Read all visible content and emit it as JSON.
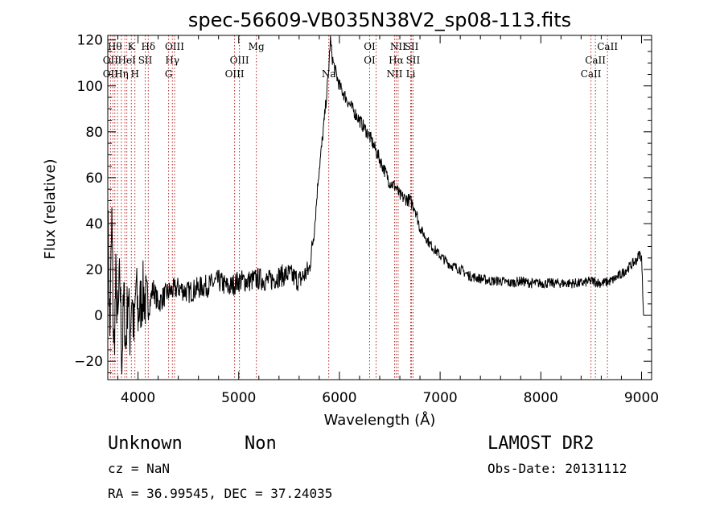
{
  "chart_data": {
    "type": "line",
    "title": "spec-56609-VB035N38V2_sp08-113.fits",
    "xlabel": "Wavelength (Å)",
    "ylabel": "Flux (relative)",
    "xlim": [
      3700,
      9100
    ],
    "ylim": [
      -28,
      122
    ],
    "xticks": [
      4000,
      5000,
      6000,
      7000,
      8000,
      9000
    ],
    "yticks": [
      -20,
      0,
      20,
      40,
      60,
      80,
      100,
      120
    ],
    "grid": false,
    "line_color": "#000000",
    "marker_color": "#b22222",
    "spectrum": {
      "name": "flux",
      "x": [
        3700,
        3720,
        3740,
        3760,
        3780,
        3800,
        3820,
        3840,
        3860,
        3880,
        3900,
        3920,
        3940,
        3960,
        3980,
        4000,
        4050,
        4100,
        4150,
        4200,
        4250,
        4300,
        4400,
        4500,
        4600,
        4700,
        4800,
        4900,
        5000,
        5100,
        5200,
        5300,
        5400,
        5500,
        5600,
        5700,
        5730,
        5760,
        5790,
        5820,
        5850,
        5870,
        5890,
        5910,
        5930,
        5950,
        6000,
        6100,
        6200,
        6300,
        6400,
        6500,
        6560,
        6600,
        6700,
        6750,
        6800,
        6900,
        7000,
        7100,
        7200,
        7300,
        7400,
        7500,
        7600,
        7700,
        7800,
        7900,
        8000,
        8100,
        8200,
        8300,
        8400,
        8500,
        8600,
        8700,
        8800,
        8900,
        8950,
        8980,
        9000,
        9020
      ],
      "y": [
        45,
        -10,
        42,
        -18,
        15,
        -5,
        18,
        -20,
        8,
        -15,
        12,
        -8,
        10,
        -10,
        14,
        0,
        10,
        2,
        12,
        5,
        8,
        10,
        12,
        10,
        12,
        13,
        15,
        12,
        15,
        15,
        16,
        15,
        17,
        18,
        15,
        20,
        30,
        42,
        60,
        72,
        85,
        95,
        105,
        120,
        112,
        108,
        100,
        92,
        85,
        78,
        68,
        58,
        56,
        52,
        50,
        47,
        38,
        31,
        26,
        22,
        20,
        17,
        16,
        15,
        15,
        14,
        15,
        14,
        14,
        14,
        14,
        14,
        14,
        15,
        14,
        15,
        18,
        22,
        24,
        27,
        25,
        0
      ]
    },
    "lines": [
      {
        "x": 3727,
        "labels": [
          "OII"
        ]
      },
      {
        "x": 3750,
        "labels": [
          "OII"
        ]
      },
      {
        "x": 3770,
        "labels": [
          "Hθ"
        ]
      },
      {
        "x": 3797,
        "labels": [
          "Hη"
        ]
      },
      {
        "x": 3835,
        "labels": [
          "Hη"
        ]
      },
      {
        "x": 3869,
        "labels": [
          "HeI"
        ]
      },
      {
        "x": 3889,
        "labels": [
          "HeI"
        ]
      },
      {
        "x": 3934,
        "labels": [
          "K"
        ]
      },
      {
        "x": 3969,
        "labels": [
          "H"
        ]
      },
      {
        "x": 4072,
        "labels": [
          "SII"
        ]
      },
      {
        "x": 4102,
        "labels": [
          "Hδ"
        ]
      },
      {
        "x": 4304,
        "labels": [
          "G"
        ]
      },
      {
        "x": 4341,
        "labels": [
          "Hγ"
        ]
      },
      {
        "x": 4363,
        "labels": [
          "OIII"
        ]
      },
      {
        "x": 4959,
        "labels": [
          "OIII"
        ]
      },
      {
        "x": 5007,
        "labels": [
          "OIII"
        ]
      },
      {
        "x": 5175,
        "labels": [
          "Mg"
        ]
      },
      {
        "x": 5894,
        "labels": [
          "Na"
        ]
      },
      {
        "x": 6300,
        "labels": [
          "OI"
        ]
      },
      {
        "x": 6364,
        "labels": [
          "OI"
        ]
      },
      {
        "x": 6548,
        "labels": [
          "NII"
        ]
      },
      {
        "x": 6563,
        "labels": [
          "Hα"
        ]
      },
      {
        "x": 6583,
        "labels": [
          "NII"
        ]
      },
      {
        "x": 6716,
        "labels": [
          "SII"
        ]
      },
      {
        "x": 6731,
        "labels": [
          "SII"
        ]
      },
      {
        "x": 6708,
        "labels": [
          "Li"
        ]
      },
      {
        "x": 8498,
        "labels": [
          "CaII"
        ]
      },
      {
        "x": 8542,
        "labels": [
          "CaII"
        ]
      },
      {
        "x": 8662,
        "labels": [
          "CaII"
        ]
      }
    ],
    "line_label_rows": [
      {
        "x": 3770,
        "text": "Hθ",
        "row": 0
      },
      {
        "x": 3934,
        "text": "K",
        "row": 0
      },
      {
        "x": 4102,
        "text": "Hδ",
        "row": 0
      },
      {
        "x": 4363,
        "text": "OIII",
        "row": 0
      },
      {
        "x": 5175,
        "text": "Mg",
        "row": 0
      },
      {
        "x": 6300,
        "text": "OI",
        "row": 0
      },
      {
        "x": 6583,
        "text": "NII",
        "row": 0
      },
      {
        "x": 6716,
        "text": "SII",
        "row": 0
      },
      {
        "x": 8662,
        "text": "CaII",
        "row": 0
      },
      {
        "x": 3727,
        "text": "OII",
        "row": 1
      },
      {
        "x": 3889,
        "text": "HeI",
        "row": 1
      },
      {
        "x": 4072,
        "text": "SII",
        "row": 1
      },
      {
        "x": 4341,
        "text": "Hγ",
        "row": 1
      },
      {
        "x": 5007,
        "text": "OIII",
        "row": 1
      },
      {
        "x": 6300,
        "text": "OI",
        "row": 1
      },
      {
        "x": 6563,
        "text": "Hα",
        "row": 1
      },
      {
        "x": 6731,
        "text": "SII",
        "row": 1
      },
      {
        "x": 8542,
        "text": "CaII",
        "row": 1
      },
      {
        "x": 3727,
        "text": "OII",
        "row": 2
      },
      {
        "x": 3835,
        "text": "Hη",
        "row": 2
      },
      {
        "x": 3969,
        "text": "H",
        "row": 2
      },
      {
        "x": 4304,
        "text": "G",
        "row": 2
      },
      {
        "x": 4959,
        "text": "OIII",
        "row": 2
      },
      {
        "x": 5894,
        "text": "Na",
        "row": 2
      },
      {
        "x": 6548,
        "text": "NII",
        "row": 2
      },
      {
        "x": 6708,
        "text": "Li",
        "row": 2
      },
      {
        "x": 8498,
        "text": "CaII",
        "row": 2
      }
    ]
  },
  "info": {
    "class": "Unknown",
    "subclass": "Non",
    "survey": "LAMOST DR2",
    "cz": "cz = NaN",
    "obs_date": "Obs-Date: 20131112",
    "radec": "RA =  36.99545, DEC =  37.24035"
  }
}
